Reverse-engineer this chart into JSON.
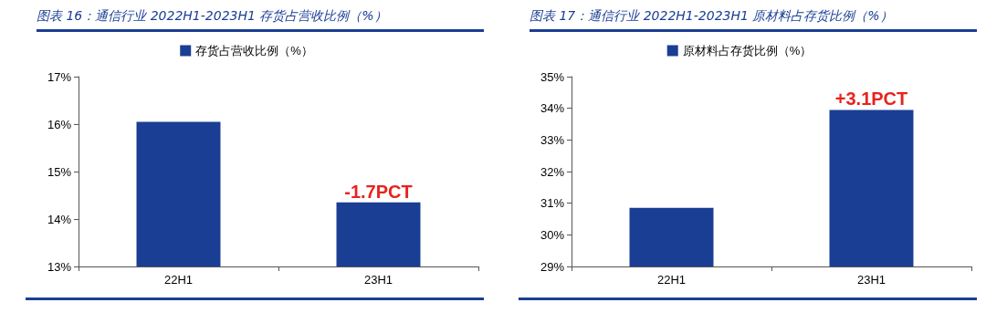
{
  "chart_data": [
    {
      "type": "bar",
      "title": "图表 16：通信行业 2022H1-2023H1 存货占营收比例（%）",
      "categories": [
        "22H1",
        "23H1"
      ],
      "series": [
        {
          "name": "存货占营收比例（%）",
          "color": "#1a3e94",
          "values": [
            16.05,
            14.35
          ]
        }
      ],
      "ylim": [
        13,
        17
      ],
      "yticks": [
        {
          "value": 13,
          "label": "13%"
        },
        {
          "value": 14,
          "label": "14%"
        },
        {
          "value": 15,
          "label": "15%"
        },
        {
          "value": 16,
          "label": "16%"
        },
        {
          "value": 17,
          "label": "17%"
        }
      ],
      "grid": false,
      "legend": "top",
      "annotations": [
        {
          "text": "-1.7PCT",
          "x": "23H1",
          "y": 14.35
        }
      ]
    },
    {
      "type": "bar",
      "title": "图表 17：通信行业 2022H1-2023H1 原材料占存货比例（%）",
      "categories": [
        "22H1",
        "23H1"
      ],
      "series": [
        {
          "name": "原材料占存货比例（%）",
          "color": "#1a3e94",
          "values": [
            30.85,
            33.95
          ]
        }
      ],
      "ylim": [
        29,
        35
      ],
      "yticks": [
        {
          "value": 29,
          "label": "29%"
        },
        {
          "value": 30,
          "label": "30%"
        },
        {
          "value": 31,
          "label": "31%"
        },
        {
          "value": 32,
          "label": "32%"
        },
        {
          "value": 33,
          "label": "33%"
        },
        {
          "value": 34,
          "label": "34%"
        },
        {
          "value": 35,
          "label": "35%"
        }
      ],
      "grid": false,
      "legend": "top",
      "annotations": [
        {
          "text": "+3.1PCT",
          "x": "23H1",
          "y": 33.95
        }
      ]
    }
  ]
}
